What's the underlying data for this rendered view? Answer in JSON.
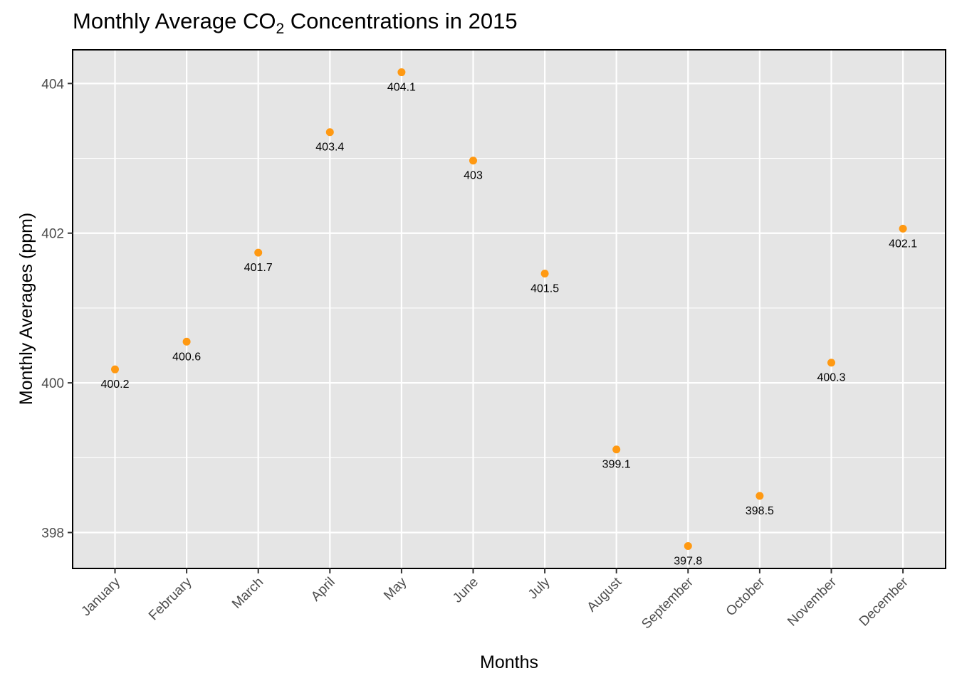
{
  "chart_data": {
    "type": "scatter",
    "title": "Monthly Average CO",
    "title_subscript": "2",
    "title_suffix": " Concentrations in 2015",
    "xlabel": "Months",
    "ylabel": "Monthly Averages (ppm)",
    "categories": [
      "January",
      "February",
      "March",
      "April",
      "May",
      "June",
      "July",
      "August",
      "September",
      "October",
      "November",
      "December"
    ],
    "values": [
      400.18,
      400.55,
      401.74,
      403.35,
      404.15,
      402.97,
      401.46,
      399.11,
      397.82,
      398.49,
      400.27,
      402.06
    ],
    "labels": [
      "400.2",
      "400.6",
      "401.7",
      "403.4",
      "404.1",
      "403",
      "401.5",
      "399.1",
      "397.8",
      "398.5",
      "400.3",
      "402.1"
    ],
    "ylim": [
      397.52,
      404.45
    ],
    "yticks": [
      398,
      400,
      402,
      404
    ],
    "ytick_labels": [
      "398",
      "400",
      "402",
      "404"
    ],
    "grid": true,
    "point_color": "#FF9912",
    "panel_color": "#E5E5E5",
    "grid_color": "#FFFFFF"
  }
}
